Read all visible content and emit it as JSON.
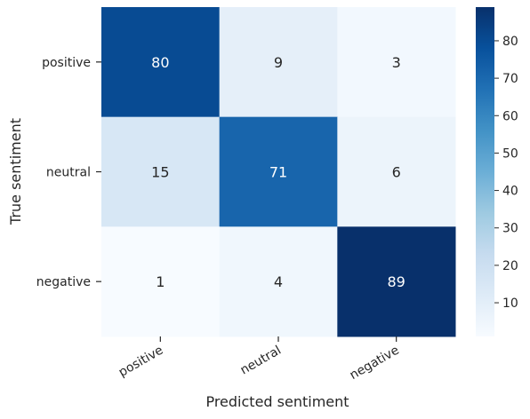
{
  "chart_data": {
    "type": "heatmap",
    "title": "",
    "xlabel": "Predicted sentiment",
    "ylabel": "True sentiment",
    "x_categories": [
      "positive",
      "neutral",
      "negative"
    ],
    "y_categories": [
      "positive",
      "neutral",
      "negative"
    ],
    "values": [
      [
        80,
        9,
        3
      ],
      [
        15,
        71,
        6
      ],
      [
        1,
        4,
        89
      ]
    ],
    "colormap": "Blues",
    "colorbar": {
      "range": [
        1,
        89
      ],
      "ticks": [
        10,
        20,
        30,
        40,
        50,
        60,
        70,
        80
      ]
    },
    "grid": false
  }
}
